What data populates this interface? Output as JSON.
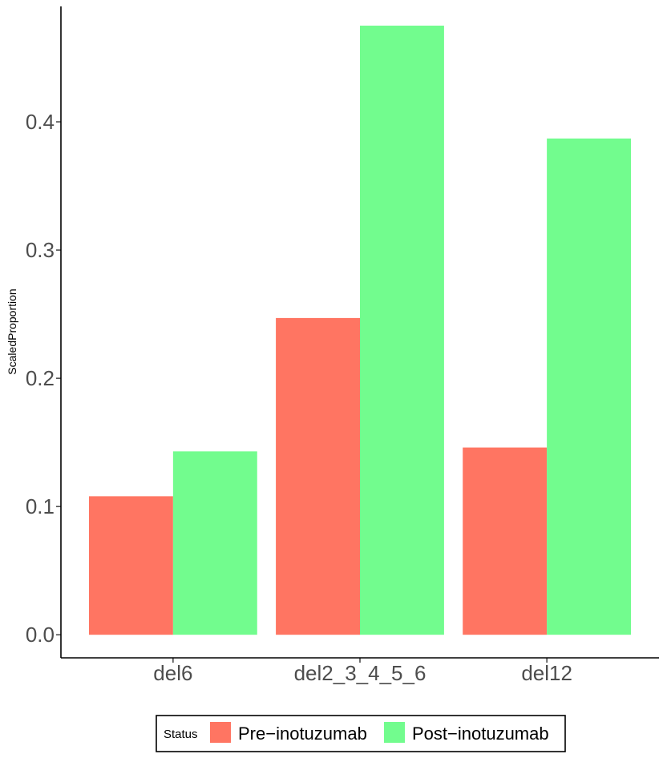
{
  "chart_data": {
    "type": "bar",
    "title": "",
    "xlabel": "",
    "ylabel": "ScaledProportion",
    "ylim": [
      -0.018,
      0.49
    ],
    "yticks": [
      0.0,
      0.1,
      0.2,
      0.3,
      0.4
    ],
    "ytick_labels": [
      "0.0",
      "0.1",
      "0.2",
      "0.3",
      "0.4"
    ],
    "categories": [
      "del6",
      "del2_3_4_5_6",
      "del12"
    ],
    "series": [
      {
        "name": "Pre−inotuzumab",
        "color": "#FF7562",
        "values": [
          0.108,
          0.247,
          0.146
        ]
      },
      {
        "name": "Post−inotuzumab",
        "color": "#72FC8E",
        "values": [
          0.143,
          0.475,
          0.387
        ]
      }
    ],
    "legend": {
      "title": "Status",
      "position": "bottom"
    },
    "grid": false
  }
}
